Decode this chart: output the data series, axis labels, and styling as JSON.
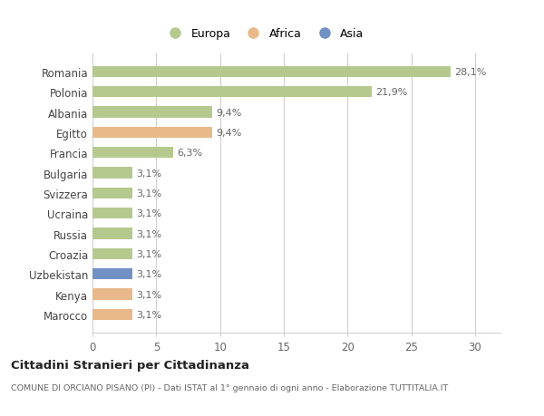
{
  "categories": [
    "Romania",
    "Polonia",
    "Albania",
    "Egitto",
    "Francia",
    "Bulgaria",
    "Svizzera",
    "Ucraina",
    "Russia",
    "Croazia",
    "Uzbekistan",
    "Kenya",
    "Marocco"
  ],
  "values": [
    28.1,
    21.9,
    9.4,
    9.4,
    6.3,
    3.1,
    3.1,
    3.1,
    3.1,
    3.1,
    3.1,
    3.1,
    3.1
  ],
  "colors": [
    "#b5c98e",
    "#b5c98e",
    "#b5c98e",
    "#e8b98a",
    "#b5c98e",
    "#b5c98e",
    "#b5c98e",
    "#b5c98e",
    "#b5c98e",
    "#b5c98e",
    "#7190c4",
    "#e8b98a",
    "#e8b98a"
  ],
  "labels": [
    "28,1%",
    "21,9%",
    "9,4%",
    "9,4%",
    "6,3%",
    "3,1%",
    "3,1%",
    "3,1%",
    "3,1%",
    "3,1%",
    "3,1%",
    "3,1%",
    "3,1%"
  ],
  "xlim": [
    0,
    32
  ],
  "xticks": [
    0,
    5,
    10,
    15,
    20,
    25,
    30
  ],
  "legend_labels": [
    "Europa",
    "Africa",
    "Asia"
  ],
  "legend_colors": [
    "#b5c98e",
    "#e8b98a",
    "#7190c4"
  ],
  "title": "Cittadini Stranieri per Cittadinanza",
  "subtitle": "COMUNE DI ORCIANO PISANO (PI) - Dati ISTAT al 1° gennaio di ogni anno - Elaborazione TUTTITALIA.IT",
  "bg_color": "#ffffff",
  "grid_color": "#d0d0d0",
  "bar_height": 0.55,
  "label_fontsize": 8.0,
  "ytick_fontsize": 8.5,
  "xtick_fontsize": 8.5,
  "label_color": "#666666",
  "ytick_color": "#444444"
}
